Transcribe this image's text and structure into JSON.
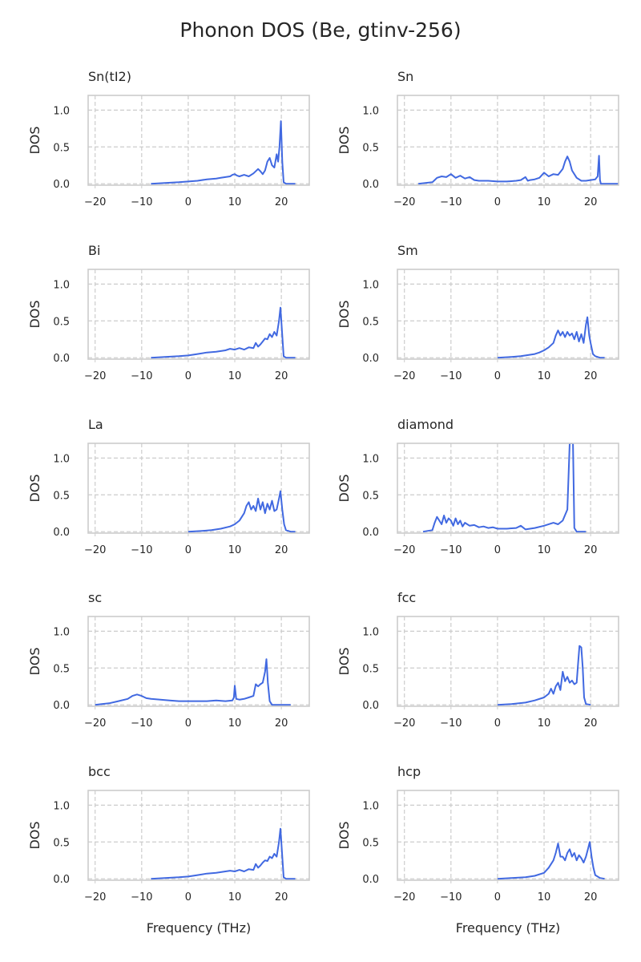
{
  "figure": {
    "title": "Phonon DOS (Be, gtinv-256)",
    "line_color": "#4169e1",
    "grid_color": "#cccccc"
  },
  "chart_data": [
    {
      "type": "line",
      "title": "Sn(tI2)",
      "xlabel": "",
      "ylabel": "DOS",
      "xlim": [
        -21.5,
        26
      ],
      "ylim": [
        -0.02,
        1.2
      ],
      "xticks": [
        -20,
        -10,
        0,
        10,
        20
      ],
      "yticks": [
        0.0,
        0.5,
        1.0
      ],
      "grid": true,
      "x": [
        -8,
        -5,
        -2,
        0,
        2,
        4,
        6,
        7,
        8,
        9,
        9.5,
        10,
        10.5,
        11,
        12,
        13,
        14,
        15,
        15.5,
        16,
        16.5,
        17,
        17.5,
        18,
        18.5,
        19,
        19.3,
        19.6,
        19.9,
        20.2,
        20.5,
        21,
        23
      ],
      "y": [
        0.0,
        0.01,
        0.02,
        0.03,
        0.04,
        0.06,
        0.07,
        0.08,
        0.09,
        0.1,
        0.12,
        0.13,
        0.11,
        0.1,
        0.12,
        0.1,
        0.14,
        0.2,
        0.17,
        0.13,
        0.18,
        0.3,
        0.35,
        0.25,
        0.22,
        0.4,
        0.3,
        0.5,
        0.85,
        0.3,
        0.02,
        0.0,
        0.0
      ]
    },
    {
      "type": "line",
      "title": "Sn",
      "xlabel": "",
      "ylabel": "DOS",
      "xlim": [
        -21.5,
        26
      ],
      "ylim": [
        -0.02,
        1.2
      ],
      "xticks": [
        -20,
        -10,
        0,
        10,
        20
      ],
      "yticks": [
        0.0,
        0.5,
        1.0
      ],
      "grid": true,
      "x": [
        -17,
        -14,
        -13.5,
        -13,
        -12,
        -11,
        -10,
        -9,
        -8,
        -7,
        -6,
        -5,
        -4,
        -2,
        0,
        2,
        4,
        5,
        6,
        6.5,
        7,
        8,
        9,
        10,
        11,
        12,
        13,
        14,
        14.5,
        15,
        15.5,
        16,
        17,
        18,
        19,
        20,
        21,
        21.5,
        21.8,
        22,
        22.2,
        23,
        26
      ],
      "y": [
        0.0,
        0.02,
        0.05,
        0.08,
        0.1,
        0.09,
        0.13,
        0.08,
        0.11,
        0.07,
        0.09,
        0.05,
        0.04,
        0.04,
        0.03,
        0.03,
        0.04,
        0.05,
        0.09,
        0.04,
        0.05,
        0.06,
        0.08,
        0.15,
        0.1,
        0.13,
        0.12,
        0.2,
        0.3,
        0.37,
        0.3,
        0.18,
        0.08,
        0.04,
        0.04,
        0.05,
        0.06,
        0.1,
        0.38,
        0.05,
        0.0,
        0.0,
        0.0
      ]
    },
    {
      "type": "line",
      "title": "Bi",
      "xlabel": "",
      "ylabel": "DOS",
      "xlim": [
        -21.5,
        26
      ],
      "ylim": [
        -0.02,
        1.2
      ],
      "xticks": [
        -20,
        -10,
        0,
        10,
        20
      ],
      "yticks": [
        0.0,
        0.5,
        1.0
      ],
      "grid": true,
      "x": [
        -8,
        -5,
        -2,
        0,
        2,
        4,
        6,
        8,
        9,
        10,
        11,
        12,
        13,
        14,
        14.5,
        15,
        15.5,
        16,
        16.5,
        17,
        17.5,
        18,
        18.5,
        19,
        19.5,
        19.8,
        20.2,
        20.5,
        21,
        23
      ],
      "y": [
        0.0,
        0.01,
        0.02,
        0.03,
        0.05,
        0.07,
        0.08,
        0.1,
        0.12,
        0.11,
        0.13,
        0.11,
        0.14,
        0.13,
        0.2,
        0.15,
        0.18,
        0.22,
        0.26,
        0.25,
        0.32,
        0.28,
        0.35,
        0.3,
        0.5,
        0.68,
        0.3,
        0.02,
        0.0,
        0.0
      ]
    },
    {
      "type": "line",
      "title": "Sm",
      "xlabel": "",
      "ylabel": "DOS",
      "xlim": [
        -21.5,
        26
      ],
      "ylim": [
        -0.02,
        1.2
      ],
      "xticks": [
        -20,
        -10,
        0,
        10,
        20
      ],
      "yticks": [
        0.0,
        0.5,
        1.0
      ],
      "grid": true,
      "x": [
        0,
        3,
        5,
        7,
        8,
        9,
        10,
        11,
        12,
        12.5,
        13,
        13.5,
        14,
        14.5,
        15,
        15.5,
        16,
        16.5,
        17,
        17.5,
        18,
        18.5,
        19,
        19.3,
        19.7,
        20,
        20.5,
        21,
        22,
        23
      ],
      "y": [
        0.0,
        0.01,
        0.02,
        0.04,
        0.05,
        0.07,
        0.1,
        0.14,
        0.2,
        0.3,
        0.37,
        0.3,
        0.35,
        0.28,
        0.35,
        0.3,
        0.33,
        0.25,
        0.35,
        0.22,
        0.32,
        0.2,
        0.45,
        0.55,
        0.3,
        0.2,
        0.05,
        0.02,
        0.0,
        0.0
      ]
    },
    {
      "type": "line",
      "title": "La",
      "xlabel": "",
      "ylabel": "DOS",
      "xlim": [
        -21.5,
        26
      ],
      "ylim": [
        -0.02,
        1.2
      ],
      "xticks": [
        -20,
        -10,
        0,
        10,
        20
      ],
      "yticks": [
        0.0,
        0.5,
        1.0
      ],
      "grid": true,
      "x": [
        0,
        3,
        5,
        7,
        9,
        10,
        11,
        12,
        12.5,
        13,
        13.5,
        14,
        14.5,
        15,
        15.5,
        16,
        16.5,
        17,
        17.5,
        18,
        18.5,
        19,
        19.5,
        19.8,
        20.2,
        20.6,
        21,
        22,
        23
      ],
      "y": [
        0.0,
        0.01,
        0.02,
        0.04,
        0.07,
        0.1,
        0.15,
        0.25,
        0.35,
        0.4,
        0.3,
        0.35,
        0.28,
        0.45,
        0.3,
        0.4,
        0.25,
        0.38,
        0.3,
        0.42,
        0.28,
        0.3,
        0.45,
        0.55,
        0.3,
        0.1,
        0.02,
        0.0,
        0.0
      ]
    },
    {
      "type": "line",
      "title": "diamond",
      "xlabel": "",
      "ylabel": "DOS",
      "xlim": [
        -21.5,
        26
      ],
      "ylim": [
        -0.02,
        1.2
      ],
      "xticks": [
        -20,
        -10,
        0,
        10,
        20
      ],
      "yticks": [
        0.0,
        0.5,
        1.0
      ],
      "grid": true,
      "x": [
        -16,
        -14,
        -13.5,
        -13,
        -12.5,
        -12,
        -11.5,
        -11,
        -10.5,
        -10,
        -9.5,
        -9,
        -8.5,
        -8,
        -7.5,
        -7,
        -6,
        -5,
        -4,
        -3,
        -2,
        -1,
        0,
        2,
        4,
        5,
        6,
        8,
        10,
        12,
        13,
        14,
        15,
        15.5,
        15.8,
        16.2,
        16.5,
        17,
        19
      ],
      "y": [
        0.0,
        0.02,
        0.12,
        0.2,
        0.15,
        0.1,
        0.22,
        0.12,
        0.18,
        0.15,
        0.08,
        0.18,
        0.1,
        0.15,
        0.07,
        0.12,
        0.08,
        0.09,
        0.06,
        0.07,
        0.05,
        0.06,
        0.04,
        0.04,
        0.05,
        0.08,
        0.03,
        0.05,
        0.08,
        0.12,
        0.1,
        0.15,
        0.3,
        1.2,
        1.2,
        1.2,
        0.05,
        0.0,
        0.0
      ]
    },
    {
      "type": "line",
      "title": "sc",
      "xlabel": "",
      "ylabel": "DOS",
      "xlim": [
        -21.5,
        26
      ],
      "ylim": [
        -0.02,
        1.2
      ],
      "xticks": [
        -20,
        -10,
        0,
        10,
        20
      ],
      "yticks": [
        0.0,
        0.5,
        1.0
      ],
      "grid": true,
      "x": [
        -20,
        -17,
        -15,
        -13,
        -12,
        -11,
        -10,
        -9,
        -8,
        -6,
        -4,
        -2,
        0,
        2,
        4,
        6,
        8,
        9.5,
        9.8,
        10,
        10.3,
        11,
        12,
        13,
        14,
        14.5,
        15,
        15.5,
        16,
        16.5,
        16.8,
        17.1,
        17.5,
        18,
        19,
        22
      ],
      "y": [
        0.0,
        0.02,
        0.05,
        0.08,
        0.12,
        0.14,
        0.12,
        0.09,
        0.08,
        0.07,
        0.06,
        0.05,
        0.05,
        0.05,
        0.05,
        0.06,
        0.05,
        0.06,
        0.1,
        0.26,
        0.08,
        0.07,
        0.08,
        0.1,
        0.12,
        0.28,
        0.25,
        0.28,
        0.3,
        0.45,
        0.62,
        0.3,
        0.05,
        0.0,
        0.0,
        0.0
      ]
    },
    {
      "type": "line",
      "title": "fcc",
      "xlabel": "",
      "ylabel": "DOS",
      "xlim": [
        -21.5,
        26
      ],
      "ylim": [
        -0.02,
        1.2
      ],
      "xticks": [
        -20,
        -10,
        0,
        10,
        20
      ],
      "yticks": [
        0.0,
        0.5,
        1.0
      ],
      "grid": true,
      "x": [
        0,
        3,
        6,
        8,
        10,
        11,
        11.5,
        12,
        12.5,
        13,
        13.5,
        14,
        14.5,
        15,
        15.5,
        16,
        16.5,
        17,
        17.3,
        17.6,
        18,
        18.3,
        18.6,
        19,
        20
      ],
      "y": [
        0.0,
        0.01,
        0.03,
        0.06,
        0.1,
        0.15,
        0.22,
        0.15,
        0.25,
        0.3,
        0.2,
        0.45,
        0.32,
        0.38,
        0.3,
        0.33,
        0.28,
        0.3,
        0.55,
        0.8,
        0.78,
        0.5,
        0.1,
        0.01,
        0.0
      ]
    },
    {
      "type": "line",
      "title": "bcc",
      "xlabel": "Frequency (THz)",
      "ylabel": "DOS",
      "xlim": [
        -21.5,
        26
      ],
      "ylim": [
        -0.02,
        1.2
      ],
      "xticks": [
        -20,
        -10,
        0,
        10,
        20
      ],
      "yticks": [
        0.0,
        0.5,
        1.0
      ],
      "grid": true,
      "x": [
        -8,
        -5,
        -2,
        0,
        2,
        4,
        6,
        8,
        9,
        10,
        11,
        12,
        13,
        14,
        14.5,
        15,
        15.5,
        16,
        16.5,
        17,
        17.5,
        18,
        18.5,
        19,
        19.5,
        19.8,
        20.2,
        20.5,
        21,
        23
      ],
      "y": [
        0.0,
        0.01,
        0.02,
        0.03,
        0.05,
        0.07,
        0.08,
        0.1,
        0.11,
        0.1,
        0.12,
        0.1,
        0.13,
        0.12,
        0.2,
        0.15,
        0.18,
        0.22,
        0.25,
        0.24,
        0.3,
        0.28,
        0.34,
        0.3,
        0.5,
        0.68,
        0.3,
        0.02,
        0.0,
        0.0
      ]
    },
    {
      "type": "line",
      "title": "hcp",
      "xlabel": "Frequency (THz)",
      "ylabel": "DOS",
      "xlim": [
        -21.5,
        26
      ],
      "ylim": [
        -0.02,
        1.2
      ],
      "xticks": [
        -20,
        -10,
        0,
        10,
        20
      ],
      "yticks": [
        0.0,
        0.5,
        1.0
      ],
      "grid": true,
      "x": [
        0,
        3,
        6,
        8,
        10,
        11,
        12,
        12.5,
        13,
        13.5,
        14,
        14.5,
        15,
        15.5,
        16,
        16.5,
        17,
        17.5,
        18,
        18.5,
        19,
        19.5,
        19.8,
        20.2,
        20.6,
        21,
        22,
        23
      ],
      "y": [
        0.0,
        0.01,
        0.02,
        0.04,
        0.08,
        0.15,
        0.25,
        0.35,
        0.48,
        0.3,
        0.3,
        0.25,
        0.35,
        0.4,
        0.3,
        0.35,
        0.25,
        0.32,
        0.28,
        0.22,
        0.3,
        0.42,
        0.5,
        0.3,
        0.15,
        0.05,
        0.01,
        0.0
      ]
    }
  ]
}
